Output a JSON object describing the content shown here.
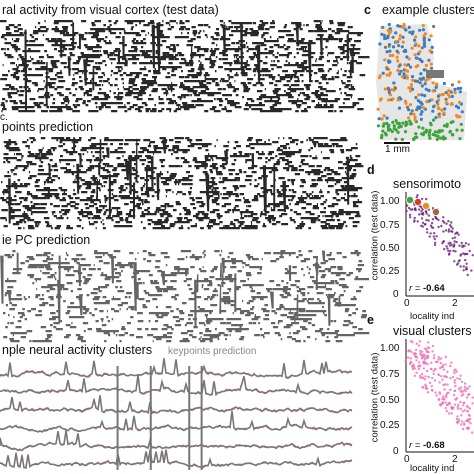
{
  "panels": {
    "raster_top": {
      "title": "ral activity from visual cortex (test data)"
    },
    "raster_keypoints": {
      "title": "points prediction",
      "fragment": "c."
    },
    "raster_moviepc": {
      "title": "ie PC prediction"
    },
    "clusters_traces": {
      "title": "nple neural activity clusters",
      "legend_label": "keypoints prediction"
    },
    "panel_c": {
      "letter": "c",
      "title": "example clusters",
      "scalebar_label": "1 mm"
    },
    "panel_d": {
      "letter": "d",
      "title": "sensorimoto",
      "ylabel": "correlation (test data)",
      "xlabel": "locality ind",
      "yticks": [
        "1.00",
        "0.75",
        "0.50",
        "0.25",
        "0"
      ],
      "xticks": [
        "0",
        "2"
      ],
      "r_label": "r = ",
      "r_value": "-0.64"
    },
    "panel_e": {
      "letter": "e",
      "title": "visual clusters",
      "ylabel": "correlation (test data)",
      "xlabel": "locality ind",
      "yticks": [
        "1.00",
        "0.75",
        "0.50",
        "0.25",
        "0"
      ],
      "xticks": [
        "0",
        "2"
      ],
      "r_label": "r = ",
      "r_value": "-0.68"
    }
  },
  "colors": {
    "raster": "#111111",
    "trace_gray": "#777777",
    "trace_pink": "#e65bc0",
    "scatter_purple": "#6a1f78",
    "scatter_pink": "#f06ab7",
    "cluster_orange": "#f08a24",
    "cluster_blue": "#2f7fd0",
    "cluster_green": "#3aa53a",
    "cluster_gray": "#777777",
    "highlight_green": "#3aa53a",
    "highlight_red": "#d43b2a",
    "highlight_orange": "#f08a24",
    "highlight_brown": "#9b6a44"
  }
}
